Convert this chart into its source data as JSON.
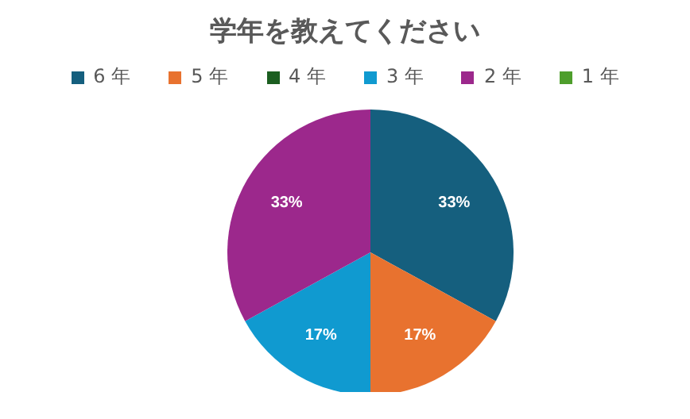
{
  "chart_data": {
    "type": "pie",
    "title": "学年を教えてください",
    "categories": [
      "6 年",
      "5 年",
      "4 年",
      "3 年",
      "2 年",
      "1 年"
    ],
    "values": [
      33,
      17,
      0,
      17,
      33,
      0
    ],
    "colors": [
      "#155f7e",
      "#e8722f",
      "#1b5e20",
      "#109ad0",
      "#9c288c",
      "#4e9e2c"
    ],
    "value_labels": [
      "33%",
      "17%",
      null,
      "17%",
      "33%",
      null
    ],
    "legend": "top"
  }
}
